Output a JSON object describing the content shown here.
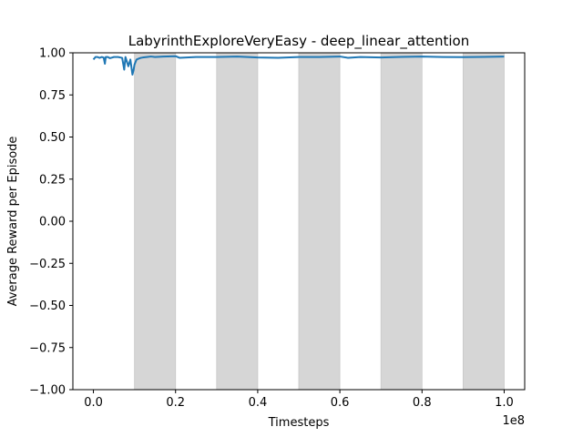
{
  "chart_data": {
    "type": "line",
    "title": "LabyrinthExploreVeryEasy - deep_linear_attention",
    "xlabel": "Timesteps",
    "ylabel": "Average Reward per Episode",
    "x_scale_label": "1e8",
    "xlim": [
      -0.05,
      1.05
    ],
    "ylim": [
      -1.0,
      1.0
    ],
    "x_ticks": [
      0.0,
      0.2,
      0.4,
      0.6,
      0.8,
      1.0
    ],
    "x_tick_labels": [
      "0.0",
      "0.2",
      "0.4",
      "0.6",
      "0.8",
      "1.0"
    ],
    "y_ticks": [
      -1.0,
      -0.75,
      -0.5,
      -0.25,
      0.0,
      0.25,
      0.5,
      0.75,
      1.0
    ],
    "y_tick_labels": [
      "−1.00",
      "−0.75",
      "−0.50",
      "−0.25",
      "0.00",
      "0.25",
      "0.50",
      "0.75",
      "1.00"
    ],
    "grid": false,
    "line_color": "#1f77b4",
    "shade_color": "#d6d6d6",
    "shaded_regions": [
      [
        0.1,
        0.2
      ],
      [
        0.3,
        0.4
      ],
      [
        0.5,
        0.6
      ],
      [
        0.7,
        0.8
      ],
      [
        0.9,
        1.0
      ]
    ],
    "series": [
      {
        "x": [
          0.0,
          0.005,
          0.01,
          0.015,
          0.02,
          0.025,
          0.028,
          0.03,
          0.035,
          0.04,
          0.05,
          0.06,
          0.07,
          0.075,
          0.078,
          0.08,
          0.085,
          0.09,
          0.095,
          0.098,
          0.1,
          0.105,
          0.11,
          0.115,
          0.12,
          0.13,
          0.14,
          0.15,
          0.17,
          0.2,
          0.21,
          0.25,
          0.3,
          0.35,
          0.4,
          0.45,
          0.5,
          0.55,
          0.6,
          0.62,
          0.65,
          0.7,
          0.75,
          0.8,
          0.85,
          0.9,
          0.95,
          1.0
        ],
        "y": [
          0.96,
          0.975,
          0.975,
          0.97,
          0.975,
          0.972,
          0.935,
          0.975,
          0.975,
          0.968,
          0.975,
          0.975,
          0.97,
          0.9,
          0.975,
          0.96,
          0.92,
          0.96,
          0.87,
          0.9,
          0.93,
          0.96,
          0.965,
          0.97,
          0.972,
          0.975,
          0.978,
          0.975,
          0.978,
          0.98,
          0.97,
          0.975,
          0.975,
          0.978,
          0.972,
          0.97,
          0.975,
          0.975,
          0.978,
          0.97,
          0.975,
          0.972,
          0.976,
          0.978,
          0.975,
          0.974,
          0.976,
          0.978
        ]
      }
    ]
  }
}
